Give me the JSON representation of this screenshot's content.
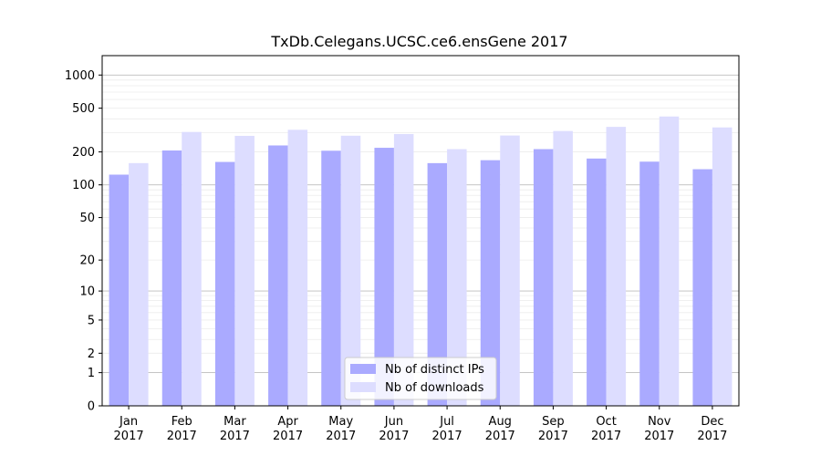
{
  "chart_data": {
    "type": "bar",
    "title": "TxDb.Celegans.UCSC.ce6.ensGene 2017",
    "xlabel": "",
    "ylabel": "",
    "categories": [
      "Jan\n2017",
      "Feb\n2017",
      "Mar\n2017",
      "Apr\n2017",
      "May\n2017",
      "Jun\n2017",
      "Jul\n2017",
      "Aug\n2017",
      "Sep\n2017",
      "Oct\n2017",
      "Nov\n2017",
      "Dec\n2017"
    ],
    "series": [
      {
        "name": "Nb of distinct IPs",
        "color": "#aaaaff",
        "values": [
          124,
          206,
          162,
          229,
          205,
          218,
          158,
          168,
          212,
          174,
          163,
          139
        ]
      },
      {
        "name": "Nb of downloads",
        "color": "#ddddff",
        "values": [
          158,
          304,
          280,
          318,
          281,
          291,
          212,
          282,
          310,
          338,
          420,
          334
        ]
      }
    ],
    "yscale": "log1p",
    "yticks": [
      0,
      1,
      2,
      5,
      10,
      20,
      50,
      100,
      200,
      500,
      1000
    ],
    "ylim": [
      0,
      1500
    ],
    "grid": true,
    "legend_position": "lower-center"
  }
}
